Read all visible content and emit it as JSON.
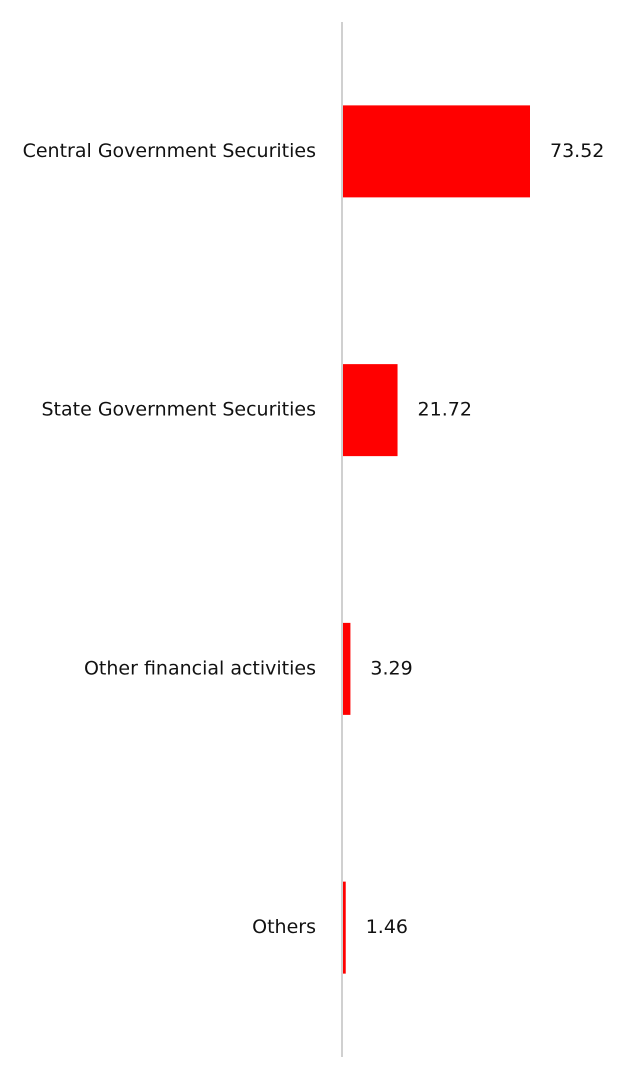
{
  "chart_data": {
    "type": "hbar",
    "categories": [
      "Central Government Securities",
      "State Government Securities",
      "Other financial activities",
      "Others"
    ],
    "values": [
      73.52,
      21.72,
      3.29,
      1.46
    ],
    "color": "#ff0000"
  }
}
